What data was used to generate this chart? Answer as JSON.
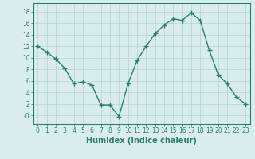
{
  "x": [
    0,
    1,
    2,
    3,
    4,
    5,
    6,
    7,
    8,
    9,
    10,
    11,
    12,
    13,
    14,
    15,
    16,
    17,
    18,
    19,
    20,
    21,
    22,
    23
  ],
  "y": [
    12.0,
    11.0,
    9.8,
    8.2,
    5.5,
    5.8,
    5.3,
    1.8,
    1.8,
    -0.2,
    5.5,
    9.5,
    12.0,
    14.2,
    15.7,
    16.8,
    16.5,
    17.8,
    16.5,
    11.3,
    7.0,
    5.5,
    3.2,
    2.0
  ],
  "line_color": "#2e7d6e",
  "marker": "+",
  "marker_size": 4,
  "marker_linewidth": 1.0,
  "line_width": 1.0,
  "bg_color": "#d9eeec",
  "grid_color": "#b8d8d4",
  "xlabel": "Humidex (Indice chaleur)",
  "xlabel_fontsize": 7,
  "ytick_vals": [
    0,
    2,
    4,
    6,
    8,
    10,
    12,
    14,
    16,
    18
  ],
  "ytick_labels": [
    "-0",
    "2",
    "4",
    "6",
    "8",
    "10",
    "12",
    "14",
    "16",
    "18"
  ],
  "xlim": [
    -0.5,
    23.5
  ],
  "ylim": [
    -1.5,
    19.5
  ],
  "xtick_labels": [
    "0",
    "1",
    "2",
    "3",
    "4",
    "5",
    "6",
    "7",
    "8",
    "9",
    "10",
    "11",
    "12",
    "13",
    "14",
    "15",
    "16",
    "17",
    "18",
    "19",
    "20",
    "21",
    "22",
    "23"
  ],
  "tick_color": "#2e7d6e",
  "tick_fontsize": 5.5,
  "spine_color": "#2e7d6e",
  "xlabel_color": "#2e7d6e",
  "xlabel_fontweight": "bold"
}
